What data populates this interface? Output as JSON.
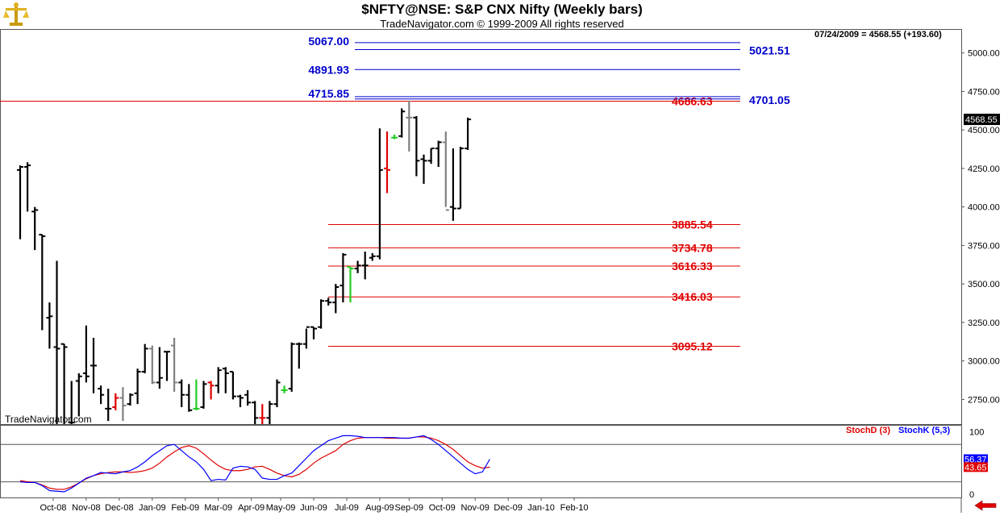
{
  "window": {
    "title": "$NFTY@NSE:  S&P CNX Nifty  (Weekly bars)",
    "subtitle": "TradeNavigator.com © 1999-2009 All rights reserved",
    "watermark": "TradeNavigator.com",
    "last_info": "07/24/2009 = 4568.55 (+193.60)",
    "logo_icon": "gold-scales-icon",
    "nav_icon": "red-left-arrow-icon"
  },
  "colors": {
    "up": "#000000",
    "gray": "#808080",
    "red": "#e00000",
    "green": "#22cc22",
    "level_red": "#e00000",
    "level_blue": "#0000cc",
    "stochD": "#e00000",
    "stochK": "#0000ff"
  },
  "chart_data": [
    {
      "type": "ohlc",
      "title": "$NFTY@NSE:  S&P CNX Nifty  (Weekly bars)",
      "ylim": [
        2590,
        5150
      ],
      "y_ticks": [
        "5000.00",
        "4750.00",
        "4500.00",
        "4250.00",
        "4000.00",
        "3750.00",
        "3500.00",
        "3250.00",
        "3000.00",
        "2750.00"
      ],
      "y_tick_values": [
        5000,
        4750,
        4500,
        4250,
        4000,
        3750,
        3500,
        3250,
        3000,
        2750
      ],
      "last_price_label": "4568.55",
      "last_price": 4568.55,
      "x_ticks": [
        "Oct-08",
        "Nov-08",
        "Dec-08",
        "Jan-09",
        "Feb-09",
        "Mar-09",
        "Apr-09",
        "May-09",
        "Jun-09",
        "Jul-09",
        "Aug-09",
        "Sep-09",
        "Oct-09",
        "Nov-09",
        "Dec-09",
        "Jan-10",
        "Feb-10"
      ],
      "x_tick_weeks": [
        4.5,
        9,
        13.5,
        18,
        22.5,
        27,
        31.5,
        35.5,
        40,
        44.5,
        49,
        53,
        57.5,
        62,
        66.5,
        71,
        75.5
      ],
      "bars": [
        {
          "o": 4240,
          "h": 4270,
          "l": 3790,
          "c": 4260,
          "color": "up"
        },
        {
          "o": 4260,
          "h": 4290,
          "l": 3970,
          "c": 4270,
          "color": "up"
        },
        {
          "o": 3970,
          "h": 4000,
          "l": 3720,
          "c": 3980,
          "color": "up"
        },
        {
          "o": 3820,
          "h": 3820,
          "l": 3200,
          "c": 3810,
          "color": "up"
        },
        {
          "o": 3280,
          "h": 3380,
          "l": 3080,
          "c": 3290,
          "color": "up"
        },
        {
          "o": 3090,
          "h": 3650,
          "l": 2590,
          "c": 3080,
          "color": "up"
        },
        {
          "o": 3110,
          "h": 3110,
          "l": 2590,
          "c": 3090,
          "color": "up"
        },
        {
          "o": 2600,
          "h": 2870,
          "l": 2590,
          "c": 2600,
          "color": "up"
        },
        {
          "o": 2870,
          "h": 2920,
          "l": 2640,
          "c": 2900,
          "color": "up"
        },
        {
          "o": 2920,
          "h": 3230,
          "l": 2860,
          "c": 2900,
          "color": "up"
        },
        {
          "o": 2970,
          "h": 3150,
          "l": 2790,
          "c": 2970,
          "color": "up"
        },
        {
          "o": 2820,
          "h": 2840,
          "l": 2720,
          "c": 2780,
          "color": "up"
        },
        {
          "o": 2690,
          "h": 2820,
          "l": 2610,
          "c": 2690,
          "color": "up"
        },
        {
          "o": 2700,
          "h": 2790,
          "l": 2680,
          "c": 2760,
          "color": "red"
        },
        {
          "o": 2760,
          "h": 2830,
          "l": 2610,
          "c": 2710,
          "color": "gray"
        },
        {
          "o": 2720,
          "h": 2790,
          "l": 2710,
          "c": 2780,
          "color": "up"
        },
        {
          "o": 2790,
          "h": 2950,
          "l": 2720,
          "c": 2930,
          "color": "up"
        },
        {
          "o": 2930,
          "h": 3110,
          "l": 2920,
          "c": 3080,
          "color": "up"
        },
        {
          "o": 3080,
          "h": 3100,
          "l": 2850,
          "c": 2860,
          "color": "gray"
        },
        {
          "o": 2860,
          "h": 3090,
          "l": 2820,
          "c": 2890,
          "color": "up"
        },
        {
          "o": 3060,
          "h": 3060,
          "l": 2870,
          "c": 3060,
          "color": "up"
        },
        {
          "o": 3100,
          "h": 3150,
          "l": 2800,
          "c": 2860,
          "color": "gray"
        },
        {
          "o": 2860,
          "h": 2880,
          "l": 2700,
          "c": 2780,
          "color": "up"
        },
        {
          "o": 2780,
          "h": 2850,
          "l": 2670,
          "c": 2680,
          "color": "up"
        },
        {
          "o": 2690,
          "h": 2880,
          "l": 2680,
          "c": 2690,
          "color": "green"
        },
        {
          "o": 2700,
          "h": 2870,
          "l": 2690,
          "c": 2850,
          "color": "up"
        },
        {
          "o": 2860,
          "h": 2870,
          "l": 2750,
          "c": 2840,
          "color": "red"
        },
        {
          "o": 2840,
          "h": 2960,
          "l": 2790,
          "c": 2940,
          "color": "up"
        },
        {
          "o": 2950,
          "h": 2960,
          "l": 2790,
          "c": 2920,
          "color": "up"
        },
        {
          "o": 2930,
          "h": 2930,
          "l": 2750,
          "c": 2770,
          "color": "up"
        },
        {
          "o": 2770,
          "h": 2780,
          "l": 2700,
          "c": 2760,
          "color": "up"
        },
        {
          "o": 2780,
          "h": 2810,
          "l": 2710,
          "c": 2730,
          "color": "up"
        },
        {
          "o": 2730,
          "h": 2740,
          "l": 2590,
          "c": 2630,
          "color": "up"
        },
        {
          "o": 2630,
          "h": 2720,
          "l": 2590,
          "c": 2630,
          "color": "red"
        },
        {
          "o": 2630,
          "h": 2740,
          "l": 2590,
          "c": 2720,
          "color": "up"
        },
        {
          "o": 2720,
          "h": 2880,
          "l": 2700,
          "c": 2860,
          "color": "up"
        },
        {
          "o": 2810,
          "h": 2840,
          "l": 2790,
          "c": 2810,
          "color": "green"
        },
        {
          "o": 2820,
          "h": 3120,
          "l": 2800,
          "c": 3110,
          "color": "up"
        },
        {
          "o": 3110,
          "h": 3120,
          "l": 2950,
          "c": 3110,
          "color": "up"
        },
        {
          "o": 3110,
          "h": 3210,
          "l": 3080,
          "c": 3220,
          "color": "up"
        },
        {
          "o": 3220,
          "h": 3220,
          "l": 3140,
          "c": 3210,
          "color": "up"
        },
        {
          "o": 3220,
          "h": 3400,
          "l": 3210,
          "c": 3390,
          "color": "up"
        },
        {
          "o": 3390,
          "h": 3410,
          "l": 3360,
          "c": 3380,
          "color": "up"
        },
        {
          "o": 3380,
          "h": 3500,
          "l": 3310,
          "c": 3480,
          "color": "up"
        },
        {
          "o": 3490,
          "h": 3700,
          "l": 3380,
          "c": 3690,
          "color": "up"
        },
        {
          "o": 3610,
          "h": 3610,
          "l": 3380,
          "c": 3600,
          "color": "green"
        },
        {
          "o": 3600,
          "h": 3650,
          "l": 3570,
          "c": 3620,
          "color": "up"
        },
        {
          "o": 3620,
          "h": 3710,
          "l": 3530,
          "c": 3620,
          "color": "up"
        },
        {
          "o": 3670,
          "h": 3700,
          "l": 3650,
          "c": 3680,
          "color": "up"
        },
        {
          "o": 3680,
          "h": 4510,
          "l": 3660,
          "c": 4240,
          "color": "up"
        },
        {
          "o": 4250,
          "h": 4490,
          "l": 4090,
          "c": 4240,
          "color": "red"
        },
        {
          "o": 4450,
          "h": 4470,
          "l": 4440,
          "c": 4450,
          "color": "green"
        },
        {
          "o": 4460,
          "h": 4640,
          "l": 4450,
          "c": 4620,
          "color": "up"
        },
        {
          "o": 4580,
          "h": 4690,
          "l": 4360,
          "c": 4580,
          "color": "gray"
        },
        {
          "o": 4580,
          "h": 4590,
          "l": 4200,
          "c": 4300,
          "color": "up"
        },
        {
          "o": 4310,
          "h": 4340,
          "l": 4150,
          "c": 4300,
          "color": "up"
        },
        {
          "o": 4300,
          "h": 4380,
          "l": 4280,
          "c": 4380,
          "color": "up"
        },
        {
          "o": 4380,
          "h": 4430,
          "l": 4260,
          "c": 4420,
          "color": "up"
        },
        {
          "o": 4420,
          "h": 4490,
          "l": 4000,
          "c": 3980,
          "color": "gray"
        },
        {
          "o": 4000,
          "h": 4380,
          "l": 3910,
          "c": 3990,
          "color": "up"
        },
        {
          "o": 3990,
          "h": 4390,
          "l": 3990,
          "c": 4380,
          "color": "up"
        },
        {
          "o": 4380,
          "h": 4580,
          "l": 4370,
          "c": 4568.55,
          "color": "up"
        }
      ],
      "levels_red": [
        {
          "label": "4686.63",
          "value": 4686.63
        },
        {
          "label": "3885.54",
          "value": 3885.54
        },
        {
          "label": "3734.78",
          "value": 3734.78
        },
        {
          "label": "3616.33",
          "value": 3616.33
        },
        {
          "label": "3416.03",
          "value": 3416.03
        },
        {
          "label": "3095.12",
          "value": 3095.12
        }
      ],
      "levels_blue": [
        {
          "label": "5067.00",
          "value": 5067.0
        },
        {
          "label": "5021.51",
          "value": 5021.51
        },
        {
          "label": "4891.93",
          "value": 4891.93
        },
        {
          "label": "4715.85",
          "value": 4715.85
        },
        {
          "label": "4701.05",
          "value": 4701.05
        }
      ]
    },
    {
      "type": "line",
      "title": "StochD (3) / StochK (5,3)",
      "ylim": [
        -5,
        110
      ],
      "y_ticks": [
        "100",
        "0"
      ],
      "y_tick_values": [
        100,
        0
      ],
      "reference_lines": [
        80,
        20
      ],
      "series": [
        {
          "name": "StochD (3)",
          "color_key": "stochD",
          "last_label": "43.65",
          "values": [
            22,
            20,
            19,
            15,
            10,
            8,
            8,
            12,
            18,
            25,
            30,
            33,
            35,
            36,
            36,
            35,
            36,
            38,
            42,
            50,
            60,
            68,
            75,
            78,
            74,
            65,
            55,
            46,
            40,
            38,
            38,
            40,
            44,
            45,
            40,
            34,
            30,
            28,
            32,
            40,
            50,
            58,
            64,
            70,
            80,
            86,
            90,
            91,
            91,
            91,
            90,
            90,
            90,
            90,
            92,
            92,
            90,
            86,
            80,
            72,
            62,
            52,
            46,
            42,
            43.65
          ]
        },
        {
          "name": "StochK (5,3)",
          "color_key": "stochK",
          "last_label": "56.37",
          "values": [
            20,
            19,
            19,
            14,
            6,
            5,
            4,
            10,
            18,
            26,
            30,
            35,
            34,
            33,
            36,
            38,
            44,
            52,
            62,
            70,
            78,
            80,
            70,
            60,
            52,
            40,
            22,
            24,
            23,
            42,
            45,
            44,
            40,
            26,
            24,
            24,
            30,
            34,
            46,
            58,
            70,
            78,
            86,
            90,
            94,
            94,
            93,
            91,
            91,
            91,
            91,
            91,
            90,
            90,
            92,
            94,
            88,
            80,
            70,
            60,
            50,
            40,
            33,
            36,
            56.37
          ]
        }
      ]
    }
  ]
}
